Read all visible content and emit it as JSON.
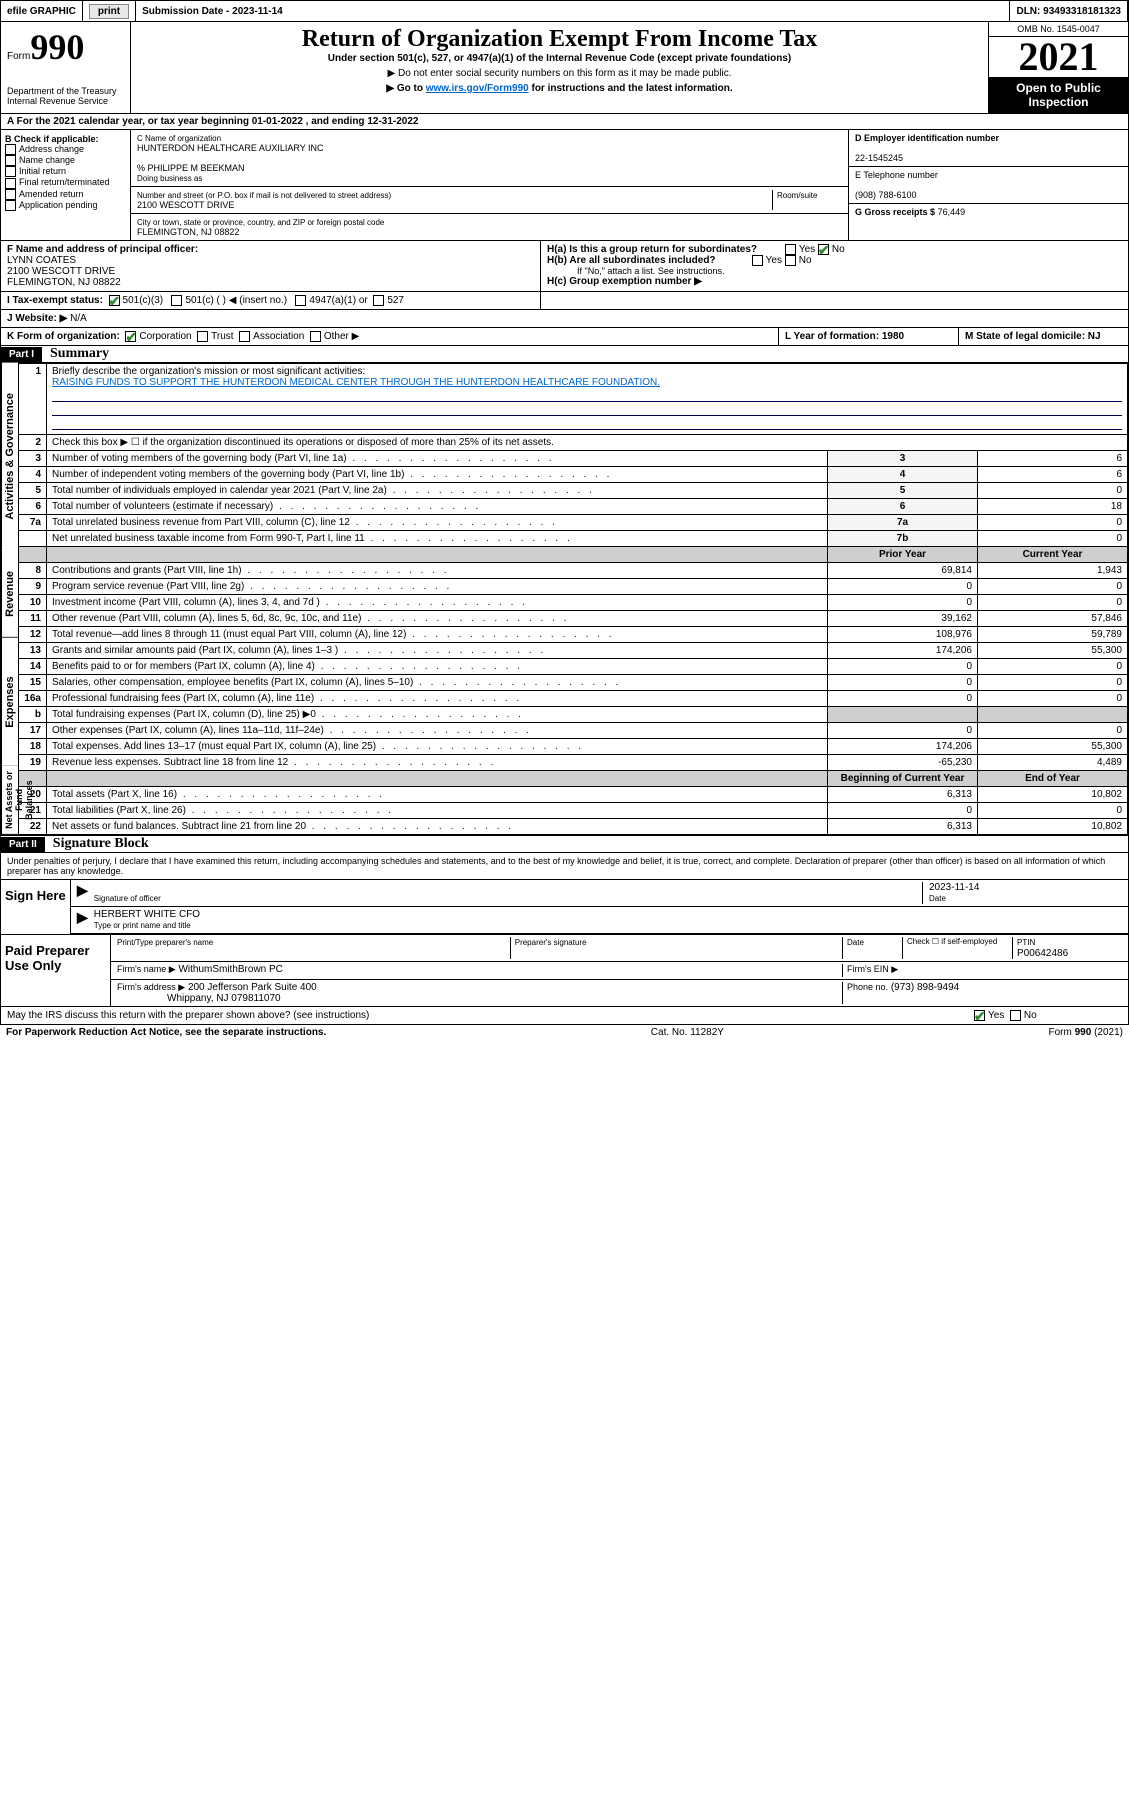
{
  "topbar": {
    "efile": "efile GRAPHIC",
    "print": "print",
    "subdate_label": "Submission Date - 2023-11-14",
    "dln": "DLN: 93493318181323"
  },
  "header": {
    "form_label": "Form",
    "form_no": "990",
    "title": "Return of Organization Exempt From Income Tax",
    "subtitle": "Under section 501(c), 527, or 4947(a)(1) of the Internal Revenue Code (except private foundations)",
    "note1": "▶ Do not enter social security numbers on this form as it may be made public.",
    "note2_pre": "▶ Go to ",
    "note2_link": "www.irs.gov/Form990",
    "note2_post": " for instructions and the latest information.",
    "dept": "Department of the Treasury",
    "irs": "Internal Revenue Service",
    "omb": "OMB No. 1545-0047",
    "year": "2021",
    "open": "Open to Public Inspection"
  },
  "rowA": "A For the 2021 calendar year, or tax year beginning 01-01-2022  , and ending 12-31-2022",
  "sectionB": {
    "label": "B Check if applicable:",
    "items": [
      "Address change",
      "Name change",
      "Initial return",
      "Final return/terminated",
      "Amended return",
      "Application pending"
    ]
  },
  "sectionC": {
    "name_label": "C Name of organization",
    "name": "HUNTERDON HEALTHCARE AUXILIARY INC",
    "care_of": "% PHILIPPE M BEEKMAN",
    "dba_label": "Doing business as",
    "addr_label": "Number and street (or P.O. box if mail is not delivered to street address)",
    "room_label": "Room/suite",
    "addr": "2100 WESCOTT DRIVE",
    "city_label": "City or town, state or province, country, and ZIP or foreign postal code",
    "city": "FLEMINGTON, NJ  08822"
  },
  "sectionD": {
    "label": "D Employer identification number",
    "val": "22-1545245"
  },
  "sectionE": {
    "label": "E Telephone number",
    "val": "(908) 788-6100"
  },
  "sectionG": {
    "label": "G Gross receipts $",
    "val": "76,449"
  },
  "sectionF": {
    "label": "F Name and address of principal officer:",
    "name": "LYNN COATES",
    "addr1": "2100 WESCOTT DRIVE",
    "addr2": "FLEMINGTON, NJ  08822"
  },
  "sectionH": {
    "ha": "H(a)  Is this a group return for subordinates?",
    "hb": "H(b)  Are all subordinates included?",
    "hb_note": "If \"No,\" attach a list. See instructions.",
    "hc": "H(c)  Group exemption number ▶",
    "yes": "Yes",
    "no": "No"
  },
  "sectionI": {
    "label": "I  Tax-exempt status:",
    "o1": "501(c)(3)",
    "o2": "501(c) (  ) ◀ (insert no.)",
    "o3": "4947(a)(1) or",
    "o4": "527"
  },
  "sectionJ": {
    "label": "J  Website: ▶",
    "val": "N/A"
  },
  "sectionK": {
    "label": "K Form of organization:",
    "o1": "Corporation",
    "o2": "Trust",
    "o3": "Association",
    "o4": "Other ▶"
  },
  "sectionL": {
    "label": "L Year of formation: 1980"
  },
  "sectionM": {
    "label": "M State of legal domicile: NJ"
  },
  "part1": {
    "header": "Part I",
    "title": "Summary",
    "side1": "Activities & Governance",
    "side2": "Revenue",
    "side3": "Expenses",
    "side4": "Net Assets or Fund Balances",
    "line1_label": "Briefly describe the organization's mission or most significant activities:",
    "line1_val": "RAISING FUNDS TO SUPPORT THE HUNTERDON MEDICAL CENTER THROUGH THE HUNTERDON HEALTHCARE FOUNDATION.",
    "line2": "Check this box ▶ ☐  if the organization discontinued its operations or disposed of more than 25% of its net assets.",
    "rows_ag": [
      {
        "n": "3",
        "t": "Number of voting members of the governing body (Part VI, line 1a)",
        "c": "3",
        "v": "6"
      },
      {
        "n": "4",
        "t": "Number of independent voting members of the governing body (Part VI, line 1b)",
        "c": "4",
        "v": "6"
      },
      {
        "n": "5",
        "t": "Total number of individuals employed in calendar year 2021 (Part V, line 2a)",
        "c": "5",
        "v": "0"
      },
      {
        "n": "6",
        "t": "Total number of volunteers (estimate if necessary)",
        "c": "6",
        "v": "18"
      },
      {
        "n": "7a",
        "t": "Total unrelated business revenue from Part VIII, column (C), line 12",
        "c": "7a",
        "v": "0"
      },
      {
        "n": "",
        "t": "Net unrelated business taxable income from Form 990-T, Part I, line 11",
        "c": "7b",
        "v": "0"
      }
    ],
    "col_prior": "Prior Year",
    "col_curr": "Current Year",
    "rows_rev": [
      {
        "n": "8",
        "t": "Contributions and grants (Part VIII, line 1h)",
        "p": "69,814",
        "c": "1,943"
      },
      {
        "n": "9",
        "t": "Program service revenue (Part VIII, line 2g)",
        "p": "0",
        "c": "0"
      },
      {
        "n": "10",
        "t": "Investment income (Part VIII, column (A), lines 3, 4, and 7d )",
        "p": "0",
        "c": "0"
      },
      {
        "n": "11",
        "t": "Other revenue (Part VIII, column (A), lines 5, 6d, 8c, 9c, 10c, and 11e)",
        "p": "39,162",
        "c": "57,846"
      },
      {
        "n": "12",
        "t": "Total revenue—add lines 8 through 11 (must equal Part VIII, column (A), line 12)",
        "p": "108,976",
        "c": "59,789"
      }
    ],
    "rows_exp": [
      {
        "n": "13",
        "t": "Grants and similar amounts paid (Part IX, column (A), lines 1–3 )",
        "p": "174,206",
        "c": "55,300"
      },
      {
        "n": "14",
        "t": "Benefits paid to or for members (Part IX, column (A), line 4)",
        "p": "0",
        "c": "0"
      },
      {
        "n": "15",
        "t": "Salaries, other compensation, employee benefits (Part IX, column (A), lines 5–10)",
        "p": "0",
        "c": "0"
      },
      {
        "n": "16a",
        "t": "Professional fundraising fees (Part IX, column (A), line 11e)",
        "p": "0",
        "c": "0"
      },
      {
        "n": "b",
        "t": "Total fundraising expenses (Part IX, column (D), line 25) ▶0",
        "p": "",
        "c": "",
        "shaded": true
      },
      {
        "n": "17",
        "t": "Other expenses (Part IX, column (A), lines 11a–11d, 11f–24e)",
        "p": "0",
        "c": "0"
      },
      {
        "n": "18",
        "t": "Total expenses. Add lines 13–17 (must equal Part IX, column (A), line 25)",
        "p": "174,206",
        "c": "55,300"
      },
      {
        "n": "19",
        "t": "Revenue less expenses. Subtract line 18 from line 12",
        "p": "-65,230",
        "c": "4,489"
      }
    ],
    "col_beg": "Beginning of Current Year",
    "col_end": "End of Year",
    "rows_net": [
      {
        "n": "20",
        "t": "Total assets (Part X, line 16)",
        "p": "6,313",
        "c": "10,802"
      },
      {
        "n": "21",
        "t": "Total liabilities (Part X, line 26)",
        "p": "0",
        "c": "0"
      },
      {
        "n": "22",
        "t": "Net assets or fund balances. Subtract line 21 from line 20",
        "p": "6,313",
        "c": "10,802"
      }
    ]
  },
  "part2": {
    "header": "Part II",
    "title": "Signature Block",
    "penalty": "Under penalties of perjury, I declare that I have examined this return, including accompanying schedules and statements, and to the best of my knowledge and belief, it is true, correct, and complete. Declaration of preparer (other than officer) is based on all information of which preparer has any knowledge.",
    "sign_here": "Sign Here",
    "sig_officer": "Signature of officer",
    "sig_date": "2023-11-14",
    "date_label": "Date",
    "officer_name": "HERBERT WHITE CFO",
    "type_name": "Type or print name and title",
    "paid": "Paid Preparer Use Only",
    "prep_name_label": "Print/Type preparer's name",
    "prep_sig_label": "Preparer's signature",
    "check_self": "Check ☐ if self-employed",
    "ptin_label": "PTIN",
    "ptin": "P00642486",
    "firm_name_label": "Firm's name    ▶",
    "firm_name": "WithumSmithBrown PC",
    "firm_ein_label": "Firm's EIN ▶",
    "firm_addr_label": "Firm's address ▶",
    "firm_addr1": "200 Jefferson Park Suite 400",
    "firm_addr2": "Whippany, NJ  079811070",
    "phone_label": "Phone no.",
    "phone": "(973) 898-9494",
    "discuss": "May the IRS discuss this return with the preparer shown above? (see instructions)",
    "yes": "Yes",
    "no": "No"
  },
  "footer": {
    "left": "For Paperwork Reduction Act Notice, see the separate instructions.",
    "mid": "Cat. No. 11282Y",
    "right": "Form 990 (2021)"
  }
}
